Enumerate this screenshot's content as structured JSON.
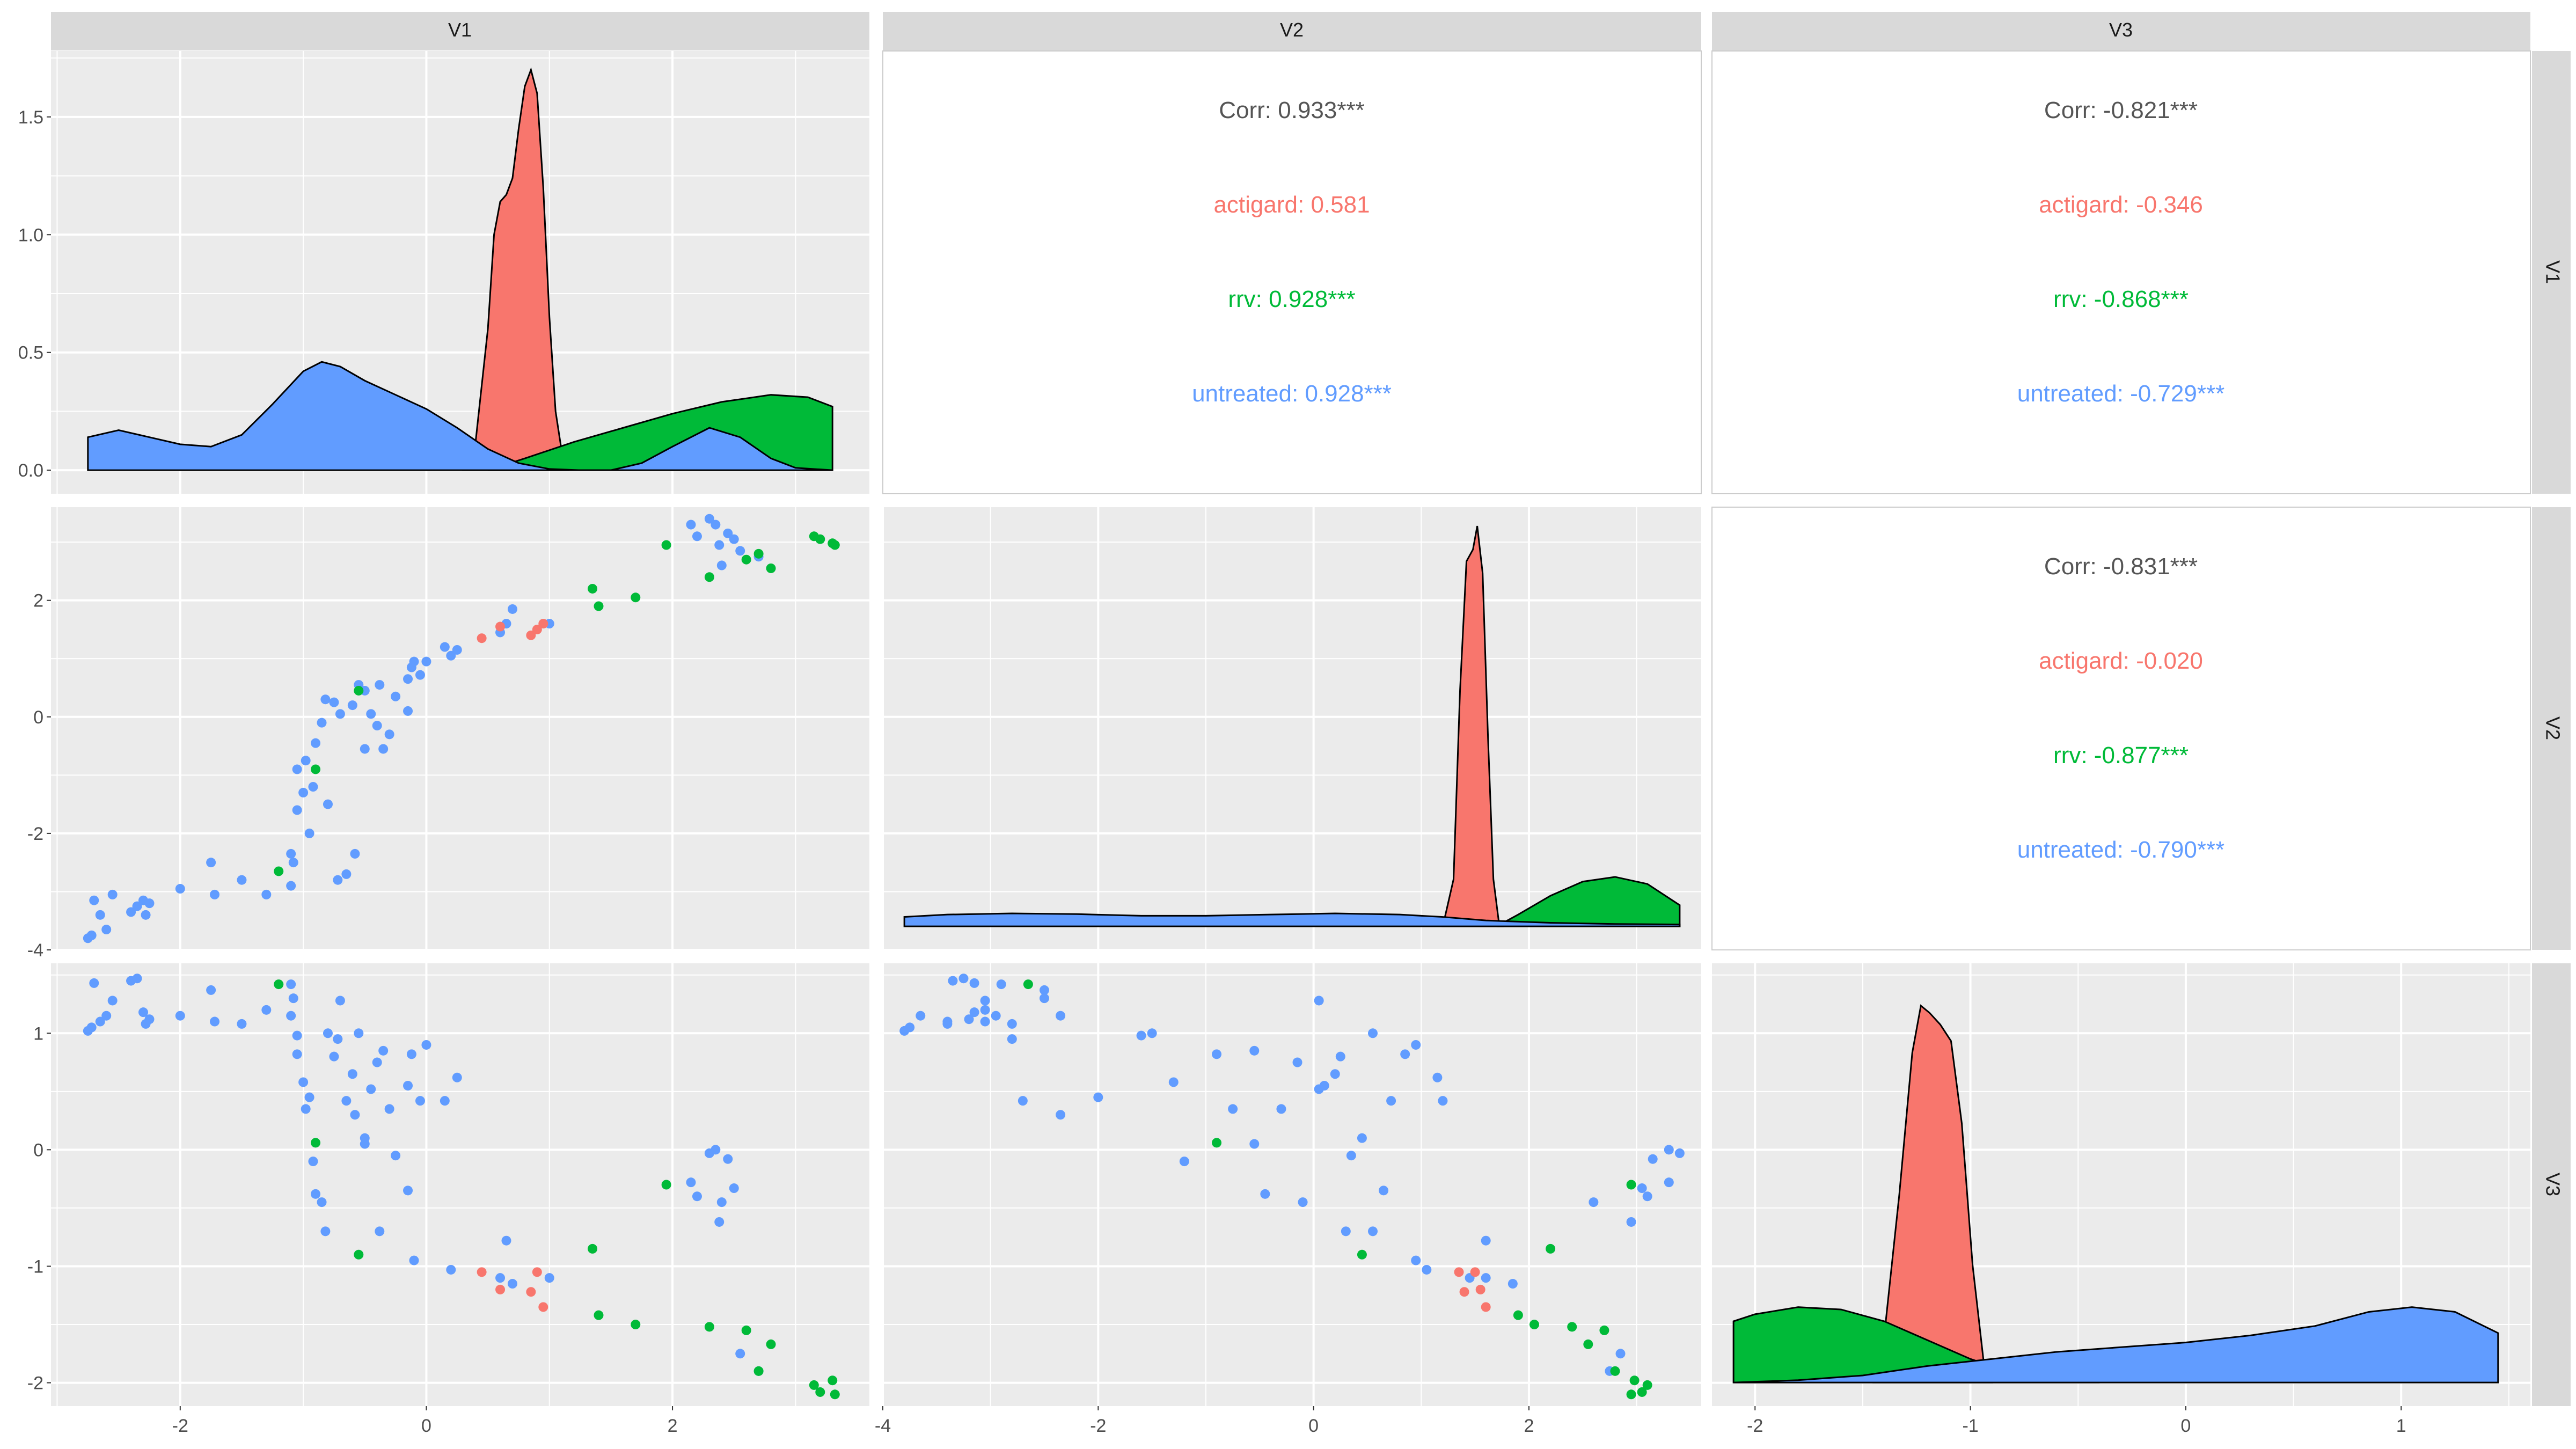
{
  "variables": [
    "V1",
    "V2",
    "V3"
  ],
  "colors": {
    "actigard": "#F8766D",
    "rrv": "#00BA38",
    "untreated": "#619CFF",
    "corr_overall": "#555555",
    "panel_bg": "#EBEBEB",
    "strip_bg": "#D9D9D9",
    "grid": "#FFFFFF"
  },
  "chart_data": {
    "type": "scatter",
    "groups": [
      "actigard",
      "rrv",
      "untreated"
    ],
    "axes": {
      "V1": {
        "lim": [
          -3.05,
          3.6
        ],
        "ticks": [
          -2,
          0,
          2
        ],
        "tick_labels": [
          "-2",
          "0",
          "2"
        ]
      },
      "V2": {
        "lim": [
          -4.0,
          3.6
        ],
        "ticks": [
          -4,
          -2,
          0,
          2
        ],
        "tick_labels": [
          "-4",
          "-2",
          "0",
          "2"
        ]
      },
      "V3": {
        "lim": [
          -2.2,
          1.6
        ],
        "ticks": [
          -2,
          -1,
          0,
          1
        ],
        "tick_labels": [
          "-2",
          "-1",
          "0",
          "1"
        ]
      }
    },
    "density_axis": {
      "lim": [
        -0.1,
        1.78
      ],
      "ticks": [
        0,
        0.5,
        1,
        1.5
      ],
      "tick_labels": [
        "0.0",
        "0.5",
        "1.0",
        "1.5"
      ]
    },
    "densities": {
      "V1": {
        "actigard": [
          [
            0.3,
            0
          ],
          [
            0.4,
            0.12
          ],
          [
            0.5,
            0.6
          ],
          [
            0.55,
            1.0
          ],
          [
            0.6,
            1.14
          ],
          [
            0.65,
            1.17
          ],
          [
            0.7,
            1.24
          ],
          [
            0.75,
            1.45
          ],
          [
            0.8,
            1.63
          ],
          [
            0.85,
            1.7
          ],
          [
            0.9,
            1.6
          ],
          [
            0.95,
            1.2
          ],
          [
            1.0,
            0.65
          ],
          [
            1.05,
            0.25
          ],
          [
            1.1,
            0.08
          ],
          [
            1.15,
            0
          ]
        ],
        "rrv": [
          [
            0.5,
            0
          ],
          [
            0.8,
            0.05
          ],
          [
            1.2,
            0.12
          ],
          [
            1.6,
            0.18
          ],
          [
            2.0,
            0.24
          ],
          [
            2.4,
            0.29
          ],
          [
            2.8,
            0.32
          ],
          [
            3.1,
            0.31
          ],
          [
            3.3,
            0.27
          ]
        ],
        "untreated": [
          [
            -2.75,
            0.14
          ],
          [
            -2.5,
            0.17
          ],
          [
            -2.25,
            0.14
          ],
          [
            -2.0,
            0.11
          ],
          [
            -1.75,
            0.1
          ],
          [
            -1.5,
            0.15
          ],
          [
            -1.25,
            0.28
          ],
          [
            -1.0,
            0.42
          ],
          [
            -0.85,
            0.46
          ],
          [
            -0.7,
            0.44
          ],
          [
            -0.5,
            0.38
          ],
          [
            -0.25,
            0.32
          ],
          [
            0,
            0.26
          ],
          [
            0.25,
            0.18
          ],
          [
            0.5,
            0.09
          ],
          [
            0.75,
            0.03
          ],
          [
            1.0,
            0.005
          ],
          [
            1.25,
            0.0
          ],
          [
            1.5,
            0.0
          ],
          [
            1.75,
            0.03
          ],
          [
            2.0,
            0.1
          ],
          [
            2.3,
            0.18
          ],
          [
            2.55,
            0.14
          ],
          [
            2.8,
            0.05
          ],
          [
            3.0,
            0.01
          ],
          [
            3.3,
            0.0
          ]
        ]
      },
      "V2": {
        "actigard": [
          [
            1.2,
            0
          ],
          [
            1.3,
            0.2
          ],
          [
            1.36,
            1.0
          ],
          [
            1.42,
            1.55
          ],
          [
            1.48,
            1.6
          ],
          [
            1.52,
            1.7
          ],
          [
            1.57,
            1.5
          ],
          [
            1.62,
            0.8
          ],
          [
            1.67,
            0.2
          ],
          [
            1.72,
            0.02
          ],
          [
            1.75,
            0
          ]
        ],
        "rrv": [
          [
            1.7,
            0
          ],
          [
            1.9,
            0.05
          ],
          [
            2.2,
            0.13
          ],
          [
            2.5,
            0.19
          ],
          [
            2.8,
            0.21
          ],
          [
            3.1,
            0.18
          ],
          [
            3.4,
            0.09
          ]
        ],
        "untreated": [
          [
            -3.8,
            0.04
          ],
          [
            -3.4,
            0.05
          ],
          [
            -2.8,
            0.055
          ],
          [
            -2.2,
            0.052
          ],
          [
            -1.6,
            0.045
          ],
          [
            -1.0,
            0.045
          ],
          [
            -0.4,
            0.05
          ],
          [
            0.2,
            0.055
          ],
          [
            0.8,
            0.05
          ],
          [
            1.2,
            0.04
          ],
          [
            1.6,
            0.025
          ],
          [
            2.2,
            0.015
          ],
          [
            2.8,
            0.01
          ],
          [
            3.4,
            0.008
          ]
        ]
      },
      "V3": {
        "actigard": [
          [
            -1.45,
            0
          ],
          [
            -1.4,
            0.2
          ],
          [
            -1.33,
            0.8
          ],
          [
            -1.27,
            1.4
          ],
          [
            -1.23,
            1.6
          ],
          [
            -1.19,
            1.57
          ],
          [
            -1.14,
            1.52
          ],
          [
            -1.09,
            1.45
          ],
          [
            -1.04,
            1.1
          ],
          [
            -0.99,
            0.5
          ],
          [
            -0.94,
            0.1
          ],
          [
            -0.9,
            0
          ]
        ],
        "rrv": [
          [
            -2.1,
            0.26
          ],
          [
            -2.0,
            0.29
          ],
          [
            -1.8,
            0.32
          ],
          [
            -1.6,
            0.31
          ],
          [
            -1.4,
            0.26
          ],
          [
            -1.2,
            0.18
          ],
          [
            -1.0,
            0.1
          ],
          [
            -0.8,
            0.04
          ],
          [
            -0.6,
            0.01
          ],
          [
            -0.4,
            0.0
          ]
        ],
        "untreated": [
          [
            -2.1,
            0.0
          ],
          [
            -1.8,
            0.01
          ],
          [
            -1.5,
            0.03
          ],
          [
            -1.2,
            0.07
          ],
          [
            -0.9,
            0.1
          ],
          [
            -0.6,
            0.13
          ],
          [
            -0.3,
            0.15
          ],
          [
            0,
            0.17
          ],
          [
            0.3,
            0.2
          ],
          [
            0.6,
            0.24
          ],
          [
            0.85,
            0.3
          ],
          [
            1.05,
            0.32
          ],
          [
            1.25,
            0.3
          ],
          [
            1.45,
            0.21
          ]
        ]
      }
    },
    "points": {
      "actigard": [
        {
          "V1": 0.45,
          "V2": 1.35,
          "V3": -1.05
        },
        {
          "V1": 0.6,
          "V2": 1.55,
          "V3": -1.2
        },
        {
          "V1": 0.85,
          "V2": 1.4,
          "V3": -1.22
        },
        {
          "V1": 0.9,
          "V2": 1.5,
          "V3": -1.05
        },
        {
          "V1": 0.95,
          "V2": 1.6,
          "V3": -1.35
        }
      ],
      "rrv": [
        {
          "V1": -1.2,
          "V2": -2.65,
          "V3": 1.42
        },
        {
          "V1": -0.9,
          "V2": -0.9,
          "V3": 0.06
        },
        {
          "V1": -0.55,
          "V2": 0.45,
          "V3": -0.9
        },
        {
          "V1": 1.35,
          "V2": 2.2,
          "V3": -0.85
        },
        {
          "V1": 1.4,
          "V2": 1.9,
          "V3": -1.42
        },
        {
          "V1": 1.7,
          "V2": 2.05,
          "V3": -1.5
        },
        {
          "V1": 1.95,
          "V2": 2.95,
          "V3": -0.3
        },
        {
          "V1": 2.3,
          "V2": 2.4,
          "V3": -1.52
        },
        {
          "V1": 2.6,
          "V2": 2.7,
          "V3": -1.55
        },
        {
          "V1": 2.7,
          "V2": 2.8,
          "V3": -1.9
        },
        {
          "V1": 2.8,
          "V2": 2.55,
          "V3": -1.67
        },
        {
          "V1": 3.15,
          "V2": 3.1,
          "V3": -2.02
        },
        {
          "V1": 3.2,
          "V2": 3.05,
          "V3": -2.08
        },
        {
          "V1": 3.3,
          "V2": 2.98,
          "V3": -1.98
        },
        {
          "V1": 3.32,
          "V2": 2.95,
          "V3": -2.1
        }
      ],
      "untreated": [
        {
          "V1": -2.75,
          "V2": -3.8,
          "V3": 1.02
        },
        {
          "V1": -2.72,
          "V2": -3.75,
          "V3": 1.05
        },
        {
          "V1": -2.7,
          "V2": -3.15,
          "V3": 1.43
        },
        {
          "V1": -2.65,
          "V2": -3.4,
          "V3": 1.1
        },
        {
          "V1": -2.6,
          "V2": -3.65,
          "V3": 1.15
        },
        {
          "V1": -2.55,
          "V2": -3.05,
          "V3": 1.28
        },
        {
          "V1": -2.4,
          "V2": -3.35,
          "V3": 1.45
        },
        {
          "V1": -2.35,
          "V2": -3.25,
          "V3": 1.47
        },
        {
          "V1": -2.3,
          "V2": -3.15,
          "V3": 1.18
        },
        {
          "V1": -2.28,
          "V2": -3.4,
          "V3": 1.08
        },
        {
          "V1": -2.25,
          "V2": -3.2,
          "V3": 1.12
        },
        {
          "V1": -2.0,
          "V2": -2.95,
          "V3": 1.15
        },
        {
          "V1": -1.75,
          "V2": -2.5,
          "V3": 1.37
        },
        {
          "V1": -1.72,
          "V2": -3.05,
          "V3": 1.1
        },
        {
          "V1": -1.5,
          "V2": -2.8,
          "V3": 1.08
        },
        {
          "V1": -1.3,
          "V2": -3.05,
          "V3": 1.2
        },
        {
          "V1": -1.1,
          "V2": -2.9,
          "V3": 1.42
        },
        {
          "V1": -1.08,
          "V2": -2.5,
          "V3": 1.3
        },
        {
          "V1": -1.1,
          "V2": -2.35,
          "V3": 1.15
        },
        {
          "V1": -1.05,
          "V2": -1.6,
          "V3": 0.98
        },
        {
          "V1": -1.05,
          "V2": -0.9,
          "V3": 0.82
        },
        {
          "V1": -1.0,
          "V2": -1.3,
          "V3": 0.58
        },
        {
          "V1": -0.98,
          "V2": -0.75,
          "V3": 0.35
        },
        {
          "V1": -0.95,
          "V2": -2.0,
          "V3": 0.45
        },
        {
          "V1": -0.92,
          "V2": -1.2,
          "V3": -0.1
        },
        {
          "V1": -0.9,
          "V2": -0.45,
          "V3": -0.38
        },
        {
          "V1": -0.85,
          "V2": -0.1,
          "V3": -0.45
        },
        {
          "V1": -0.82,
          "V2": 0.3,
          "V3": -0.7
        },
        {
          "V1": -0.8,
          "V2": -1.5,
          "V3": 1.0
        },
        {
          "V1": -0.75,
          "V2": 0.25,
          "V3": 0.8
        },
        {
          "V1": -0.72,
          "V2": -2.8,
          "V3": 0.95
        },
        {
          "V1": -0.7,
          "V2": 0.05,
          "V3": 1.28
        },
        {
          "V1": -0.65,
          "V2": -2.7,
          "V3": 0.42
        },
        {
          "V1": -0.6,
          "V2": 0.2,
          "V3": 0.65
        },
        {
          "V1": -0.58,
          "V2": -2.35,
          "V3": 0.3
        },
        {
          "V1": -0.55,
          "V2": 0.55,
          "V3": 1.0
        },
        {
          "V1": -0.5,
          "V2": 0.45,
          "V3": 0.1
        },
        {
          "V1": -0.5,
          "V2": -0.55,
          "V3": 0.05
        },
        {
          "V1": -0.45,
          "V2": 0.05,
          "V3": 0.52
        },
        {
          "V1": -0.4,
          "V2": -0.15,
          "V3": 0.75
        },
        {
          "V1": -0.38,
          "V2": 0.55,
          "V3": -0.7
        },
        {
          "V1": -0.35,
          "V2": -0.55,
          "V3": 0.85
        },
        {
          "V1": -0.3,
          "V2": -0.3,
          "V3": 0.35
        },
        {
          "V1": -0.25,
          "V2": 0.35,
          "V3": -0.05
        },
        {
          "V1": -0.15,
          "V2": 0.65,
          "V3": -0.35
        },
        {
          "V1": -0.15,
          "V2": 0.1,
          "V3": 0.55
        },
        {
          "V1": -0.12,
          "V2": 0.85,
          "V3": 0.82
        },
        {
          "V1": -0.1,
          "V2": 0.95,
          "V3": -0.95
        },
        {
          "V1": -0.05,
          "V2": 0.72,
          "V3": 0.42
        },
        {
          "V1": 0.0,
          "V2": 0.95,
          "V3": 0.9
        },
        {
          "V1": 0.15,
          "V2": 1.2,
          "V3": 0.42
        },
        {
          "V1": 0.2,
          "V2": 1.05,
          "V3": -1.03
        },
        {
          "V1": 0.25,
          "V2": 1.15,
          "V3": 0.62
        },
        {
          "V1": 0.6,
          "V2": 1.45,
          "V3": -1.1
        },
        {
          "V1": 0.65,
          "V2": 1.6,
          "V3": -0.78
        },
        {
          "V1": 0.7,
          "V2": 1.85,
          "V3": -1.15
        },
        {
          "V1": 1.0,
          "V2": 1.6,
          "V3": -1.1
        },
        {
          "V1": 2.15,
          "V2": 3.3,
          "V3": -0.28
        },
        {
          "V1": 2.2,
          "V2": 3.1,
          "V3": -0.4
        },
        {
          "V1": 2.3,
          "V2": 3.4,
          "V3": -0.03
        },
        {
          "V1": 2.35,
          "V2": 3.3,
          "V3": 0.0
        },
        {
          "V1": 2.38,
          "V2": 2.95,
          "V3": -0.62
        },
        {
          "V1": 2.4,
          "V2": 2.6,
          "V3": -0.45
        },
        {
          "V1": 2.45,
          "V2": 3.15,
          "V3": -0.08
        },
        {
          "V1": 2.5,
          "V2": 3.05,
          "V3": -0.33
        },
        {
          "V1": 2.55,
          "V2": 2.85,
          "V3": -1.75
        },
        {
          "V1": 2.7,
          "V2": 2.75,
          "V3": -1.9
        }
      ]
    },
    "correlations": {
      "V1_V2": {
        "overall": "Corr: 0.933***",
        "actigard": "actigard: 0.581",
        "rrv": "rrv: 0.928***",
        "untreated": "untreated: 0.928***"
      },
      "V1_V3": {
        "overall": "Corr: -0.821***",
        "actigard": "actigard: -0.346",
        "rrv": "rrv: -0.868***",
        "untreated": "untreated: -0.729***"
      },
      "V2_V3": {
        "overall": "Corr: -0.831***",
        "actigard": "actigard: -0.020",
        "rrv": "rrv: -0.877***",
        "untreated": "untreated: -0.790***"
      }
    }
  }
}
